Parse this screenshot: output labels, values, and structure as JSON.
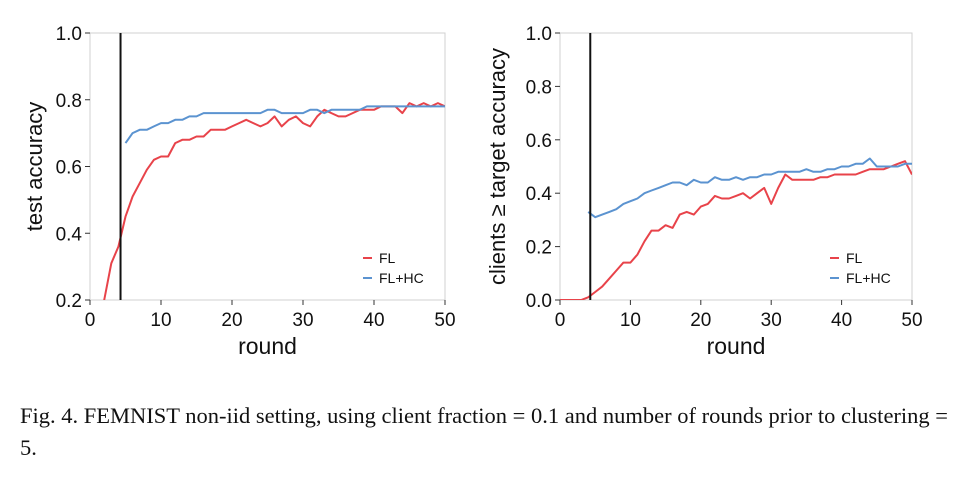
{
  "colors": {
    "FL": "#e8434a",
    "FL+HC": "#5b93d0",
    "vline": "#111111"
  },
  "chart_data": [
    {
      "type": "line",
      "xlabel": "round",
      "ylabel": "test accuracy",
      "xlim": [
        0,
        50
      ],
      "ylim": [
        0.2,
        1.0
      ],
      "xticks": [
        0,
        10,
        20,
        30,
        40,
        50
      ],
      "yticks": [
        0.2,
        0.4,
        0.6,
        0.8,
        1.0
      ],
      "ytick_labels": [
        "0.2",
        "0.4",
        "0.6",
        "0.8",
        "1.0"
      ],
      "grid": false,
      "legend": "bottom-right",
      "vline_x": 4.3,
      "series": [
        {
          "name": "FL",
          "x": [
            1,
            2,
            3,
            4,
            5,
            6,
            7,
            8,
            9,
            10,
            11,
            12,
            13,
            14,
            15,
            16,
            17,
            18,
            19,
            20,
            21,
            22,
            23,
            24,
            25,
            26,
            27,
            28,
            29,
            30,
            31,
            32,
            33,
            34,
            35,
            36,
            37,
            38,
            39,
            40,
            41,
            42,
            43,
            44,
            45,
            46,
            47,
            48,
            49,
            50
          ],
          "y": [
            0.08,
            0.2,
            0.31,
            0.36,
            0.45,
            0.51,
            0.55,
            0.59,
            0.62,
            0.63,
            0.63,
            0.67,
            0.68,
            0.68,
            0.69,
            0.69,
            0.71,
            0.71,
            0.71,
            0.72,
            0.73,
            0.74,
            0.73,
            0.72,
            0.73,
            0.75,
            0.72,
            0.74,
            0.75,
            0.73,
            0.72,
            0.75,
            0.77,
            0.76,
            0.75,
            0.75,
            0.76,
            0.77,
            0.77,
            0.77,
            0.78,
            0.78,
            0.78,
            0.76,
            0.79,
            0.78,
            0.79,
            0.78,
            0.79,
            0.78
          ]
        },
        {
          "name": "FL+HC",
          "x": [
            5,
            6,
            7,
            8,
            9,
            10,
            11,
            12,
            13,
            14,
            15,
            16,
            17,
            18,
            19,
            20,
            21,
            22,
            23,
            24,
            25,
            26,
            27,
            28,
            29,
            30,
            31,
            32,
            33,
            34,
            35,
            36,
            37,
            38,
            39,
            40,
            41,
            42,
            43,
            44,
            45,
            46,
            47,
            48,
            49,
            50
          ],
          "y": [
            0.67,
            0.7,
            0.71,
            0.71,
            0.72,
            0.73,
            0.73,
            0.74,
            0.74,
            0.75,
            0.75,
            0.76,
            0.76,
            0.76,
            0.76,
            0.76,
            0.76,
            0.76,
            0.76,
            0.76,
            0.77,
            0.77,
            0.76,
            0.76,
            0.76,
            0.76,
            0.77,
            0.77,
            0.76,
            0.77,
            0.77,
            0.77,
            0.77,
            0.77,
            0.78,
            0.78,
            0.78,
            0.78,
            0.78,
            0.78,
            0.78,
            0.78,
            0.78,
            0.78,
            0.78,
            0.78
          ]
        }
      ]
    },
    {
      "type": "line",
      "xlabel": "round",
      "ylabel": "clients ≥ target accuracy",
      "xlim": [
        0,
        50
      ],
      "ylim": [
        0.0,
        1.0
      ],
      "xticks": [
        0,
        10,
        20,
        30,
        40,
        50
      ],
      "yticks": [
        0.0,
        0.2,
        0.4,
        0.6,
        0.8,
        1.0
      ],
      "ytick_labels": [
        "0.0",
        "0.2",
        "0.4",
        "0.6",
        "0.8",
        "1.0"
      ],
      "grid": false,
      "legend": "bottom-right",
      "vline_x": 4.3,
      "series": [
        {
          "name": "FL",
          "x": [
            0,
            1,
            2,
            3,
            4,
            5,
            6,
            7,
            8,
            9,
            10,
            11,
            12,
            13,
            14,
            15,
            16,
            17,
            18,
            19,
            20,
            21,
            22,
            23,
            24,
            25,
            26,
            27,
            28,
            29,
            30,
            31,
            32,
            33,
            34,
            35,
            36,
            37,
            38,
            39,
            40,
            41,
            42,
            43,
            44,
            45,
            46,
            47,
            48,
            49,
            50
          ],
          "y": [
            0.0,
            0.0,
            0.0,
            0.0,
            0.01,
            0.03,
            0.05,
            0.08,
            0.11,
            0.14,
            0.14,
            0.17,
            0.22,
            0.26,
            0.26,
            0.28,
            0.27,
            0.32,
            0.33,
            0.32,
            0.35,
            0.36,
            0.39,
            0.38,
            0.38,
            0.39,
            0.4,
            0.38,
            0.4,
            0.42,
            0.36,
            0.42,
            0.47,
            0.45,
            0.45,
            0.45,
            0.45,
            0.46,
            0.46,
            0.47,
            0.47,
            0.47,
            0.47,
            0.48,
            0.49,
            0.49,
            0.49,
            0.5,
            0.51,
            0.52,
            0.47
          ]
        },
        {
          "name": "FL+HC",
          "x": [
            4,
            5,
            6,
            7,
            8,
            9,
            10,
            11,
            12,
            13,
            14,
            15,
            16,
            17,
            18,
            19,
            20,
            21,
            22,
            23,
            24,
            25,
            26,
            27,
            28,
            29,
            30,
            31,
            32,
            33,
            34,
            35,
            36,
            37,
            38,
            39,
            40,
            41,
            42,
            43,
            44,
            45,
            46,
            47,
            48,
            49,
            50
          ],
          "y": [
            0.33,
            0.31,
            0.32,
            0.33,
            0.34,
            0.36,
            0.37,
            0.38,
            0.4,
            0.41,
            0.42,
            0.43,
            0.44,
            0.44,
            0.43,
            0.45,
            0.44,
            0.44,
            0.46,
            0.45,
            0.45,
            0.46,
            0.45,
            0.46,
            0.46,
            0.47,
            0.47,
            0.48,
            0.48,
            0.48,
            0.48,
            0.49,
            0.48,
            0.48,
            0.49,
            0.49,
            0.5,
            0.5,
            0.51,
            0.51,
            0.53,
            0.5,
            0.5,
            0.5,
            0.5,
            0.51,
            0.51
          ]
        }
      ]
    }
  ],
  "caption": "Fig. 4.  FEMNIST non-iid setting, using client fraction = 0.1 and number of rounds prior to clustering = 5."
}
